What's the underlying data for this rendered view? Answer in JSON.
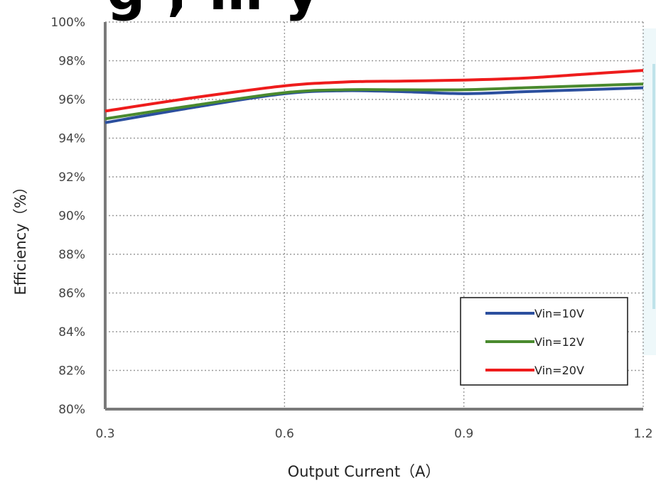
{
  "chart_data": {
    "type": "line",
    "title": "",
    "xlabel": "Output Current（A）",
    "ylabel": "Efficiency（%）",
    "xlim": [
      0.3,
      1.2
    ],
    "ylim": [
      80,
      100
    ],
    "x_ticks": [
      "0.3",
      "0.6",
      "0.9",
      "1.2"
    ],
    "y_ticks": [
      "100%",
      "98%",
      "96%",
      "94%",
      "92%",
      "90%",
      "88%",
      "86%",
      "84%",
      "82%",
      "80%"
    ],
    "grid": "dotted",
    "legend_position": "bottom-right",
    "series": [
      {
        "name": "Vin=10V",
        "color": "#2b4f9e",
        "x": [
          0.3,
          0.45,
          0.6,
          0.7,
          0.8,
          0.9,
          1.0,
          1.1,
          1.2
        ],
        "y": [
          94.8,
          95.6,
          96.3,
          96.45,
          96.4,
          96.3,
          96.4,
          96.5,
          96.6
        ]
      },
      {
        "name": "Vin=12V",
        "color": "#4a8a2e",
        "x": [
          0.3,
          0.45,
          0.6,
          0.7,
          0.8,
          0.9,
          1.0,
          1.1,
          1.2
        ],
        "y": [
          95.0,
          95.7,
          96.35,
          96.5,
          96.5,
          96.5,
          96.6,
          96.7,
          96.8
        ]
      },
      {
        "name": "Vin=20V",
        "color": "#ee1c1c",
        "x": [
          0.3,
          0.45,
          0.6,
          0.7,
          0.8,
          0.9,
          1.0,
          1.1,
          1.2
        ],
        "y": [
          95.4,
          96.1,
          96.7,
          96.9,
          96.95,
          97.0,
          97.1,
          97.3,
          97.5
        ]
      }
    ]
  },
  "header": {
    "title_fragment": "g , …  y"
  }
}
